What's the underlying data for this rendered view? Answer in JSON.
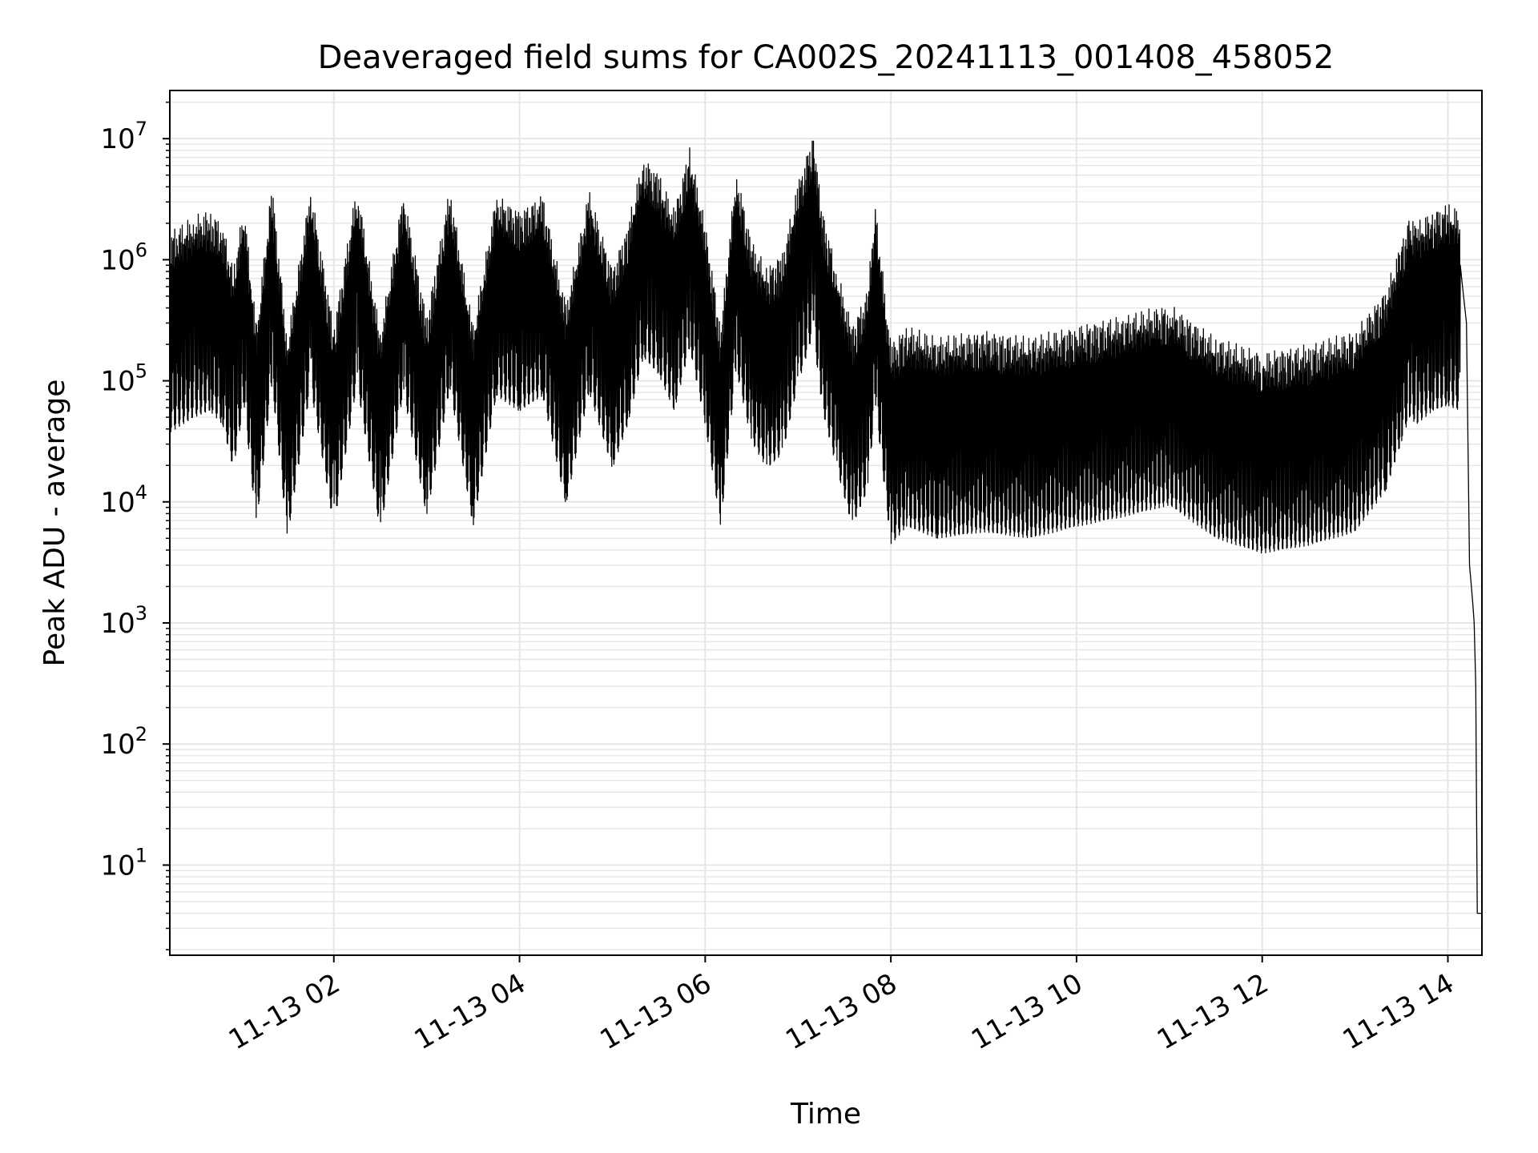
{
  "chart_data": {
    "type": "line",
    "title": "Deaveraged field sums for CA002S_20241113_001408_458052",
    "xlabel": "Time",
    "ylabel": "Peak ADU - average",
    "yscale": "log",
    "xlim": [
      "11-13 00:14",
      "11-13 14:22"
    ],
    "ylim": [
      1.8,
      25000000
    ],
    "grid": true,
    "line_color": "#000000",
    "grid_color": "#e6e6e6",
    "x_ticks": [
      "11-13 02",
      "11-13 04",
      "11-13 06",
      "11-13 08",
      "11-13 10",
      "11-13 12",
      "11-13 14"
    ],
    "y_ticks": [
      {
        "base": "10",
        "exp": "1"
      },
      {
        "base": "10",
        "exp": "2"
      },
      {
        "base": "10",
        "exp": "3"
      },
      {
        "base": "10",
        "exp": "4"
      },
      {
        "base": "10",
        "exp": "5"
      },
      {
        "base": "10",
        "exp": "6"
      },
      {
        "base": "10",
        "exp": "7"
      }
    ],
    "series": [
      {
        "x": [
          "00:14",
          "00:30",
          "00:40",
          "00:48",
          "00:55",
          "01:02",
          "01:10",
          "01:20",
          "01:30",
          "01:45",
          "02:00",
          "02:15",
          "02:30",
          "02:45",
          "03:00",
          "03:15",
          "03:30",
          "03:45",
          "04:00",
          "04:15",
          "04:30",
          "04:45",
          "05:00",
          "05:10",
          "05:20",
          "05:30",
          "05:40",
          "05:50",
          "06:00",
          "06:10",
          "06:20",
          "06:30",
          "06:40",
          "06:50",
          "07:00",
          "07:10",
          "07:15",
          "07:25",
          "07:35",
          "07:45",
          "07:50",
          "08:00",
          "08:10",
          "08:30",
          "09:00",
          "09:30",
          "10:00",
          "10:30",
          "11:00",
          "11:30",
          "12:00",
          "12:30",
          "13:00",
          "13:20",
          "13:30",
          "13:35",
          "13:40",
          "13:50",
          "14:00",
          "14:08",
          "14:12",
          "14:14",
          "14:16",
          "14:17",
          "14:18",
          "14:19",
          "14:20",
          "14:22"
        ],
        "y": [
          600000,
          800000,
          900000,
          700000,
          300000,
          1000000,
          100000,
          1500000,
          80000,
          1400000,
          100000,
          1500000,
          90000,
          1300000,
          120000,
          1400000,
          100000,
          1200000,
          900000,
          1200000,
          150000,
          1300000,
          300000,
          700000,
          2500000,
          1800000,
          900000,
          3000000,
          700000,
          100000,
          2000000,
          500000,
          300000,
          400000,
          1500000,
          4000000,
          1000000,
          300000,
          100000,
          200000,
          1000000,
          70000,
          100000,
          80000,
          90000,
          80000,
          100000,
          120000,
          150000,
          80000,
          60000,
          70000,
          90000,
          200000,
          500000,
          800000,
          700000,
          900000,
          1000000,
          900000,
          300000,
          3000,
          1500,
          1000,
          300,
          4,
          4,
          4
        ]
      }
    ]
  }
}
